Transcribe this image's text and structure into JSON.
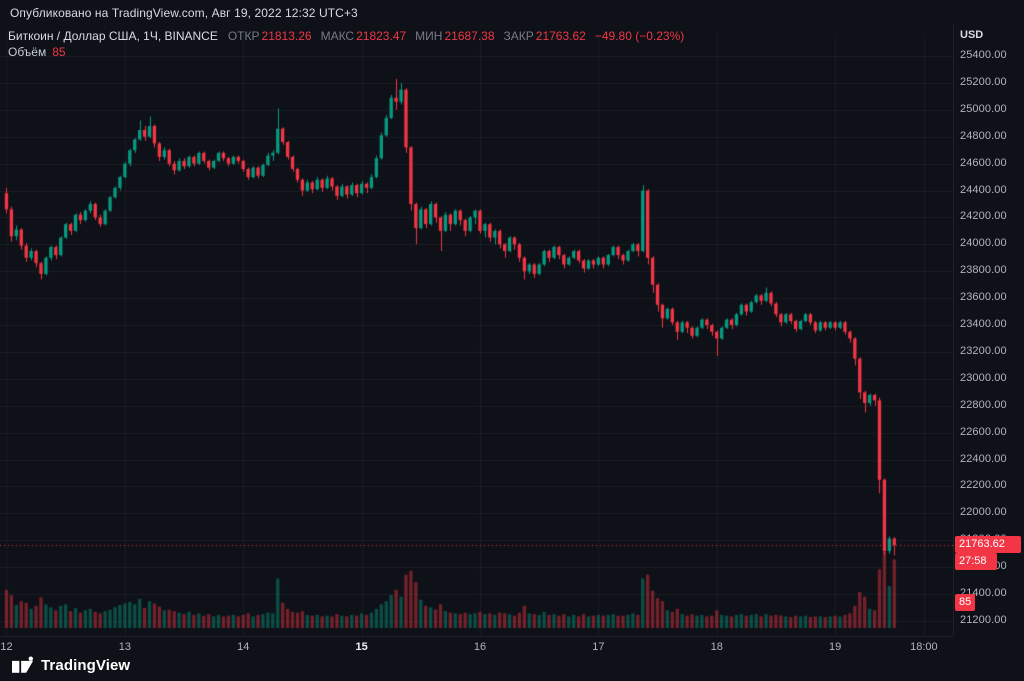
{
  "meta": {
    "published": "Опубликовано на TradingView.com, Авг 19, 2022 12:32 UTC+3"
  },
  "legend": {
    "symbol": "Биткоин / Доллар США, 1Ч, BINANCE",
    "open_label": "ОТКР",
    "open": "21813.26",
    "high_label": "МАКС",
    "high": "21823.47",
    "low_label": "МИН",
    "low": "21687.38",
    "close_label": "ЗАКР",
    "close": "21763.62",
    "change": "−49.80 (−0.23%)",
    "volume_label": "Объём",
    "volume": "85"
  },
  "axis": {
    "currency": "USD"
  },
  "badges": {
    "price": "21763.62",
    "countdown": "27:58",
    "volume": "85"
  },
  "footer": {
    "brand": "TradingView"
  },
  "chart_data": {
    "type": "candlestick",
    "title": "Биткоин / Доллар США",
    "interval": "1Ч",
    "exchange": "BINANCE",
    "up_color": "#089981",
    "down_color": "#f23645",
    "up_vol": "rgba(8,153,129,0.45)",
    "down_vol": "rgba(242,54,69,0.45)",
    "ylim": [
      21200,
      25400
    ],
    "slots": 192,
    "price_ticks": [
      25400,
      25200,
      25000,
      24800,
      24600,
      24400,
      24200,
      24000,
      23800,
      23600,
      23400,
      23200,
      23000,
      22800,
      22600,
      22400,
      22200,
      22000,
      21800,
      21600,
      21400,
      21200
    ],
    "time_ticks": [
      {
        "label": "12",
        "i": 0
      },
      {
        "label": "13",
        "i": 24
      },
      {
        "label": "14",
        "i": 48
      },
      {
        "label": "15",
        "i": 72,
        "major": true
      },
      {
        "label": "16",
        "i": 96
      },
      {
        "label": "17",
        "i": 120
      },
      {
        "label": "18",
        "i": 144
      },
      {
        "label": "19",
        "i": 168
      },
      {
        "label": "18:00",
        "i": 186
      }
    ],
    "last_close": 21763.62,
    "last_volume": 85,
    "candles": [
      [
        24380,
        24420,
        24230,
        24260,
        45
      ],
      [
        24260,
        24280,
        24020,
        24060,
        38
      ],
      [
        24060,
        24140,
        24030,
        24110,
        25
      ],
      [
        24110,
        24120,
        23960,
        23990,
        30
      ],
      [
        23990,
        24010,
        23870,
        23900,
        28
      ],
      [
        23900,
        23970,
        23880,
        23950,
        20
      ],
      [
        23950,
        23960,
        23830,
        23860,
        24
      ],
      [
        23860,
        23870,
        23740,
        23780,
        35
      ],
      [
        23780,
        23910,
        23770,
        23900,
        26
      ],
      [
        23900,
        23990,
        23880,
        23980,
        22
      ],
      [
        23980,
        23990,
        23890,
        23920,
        18
      ],
      [
        23920,
        24060,
        23910,
        24050,
        24
      ],
      [
        24050,
        24160,
        24040,
        24150,
        26
      ],
      [
        24150,
        24160,
        24070,
        24100,
        17
      ],
      [
        24100,
        24230,
        24090,
        24220,
        21
      ],
      [
        24220,
        24240,
        24150,
        24180,
        15
      ],
      [
        24180,
        24260,
        24170,
        24250,
        18
      ],
      [
        24250,
        24320,
        24230,
        24300,
        20
      ],
      [
        24300,
        24310,
        24180,
        24200,
        16
      ],
      [
        24200,
        24220,
        24130,
        24150,
        14
      ],
      [
        24150,
        24260,
        24140,
        24250,
        17
      ],
      [
        24250,
        24360,
        24240,
        24350,
        19
      ],
      [
        24350,
        24430,
        24340,
        24420,
        22
      ],
      [
        24420,
        24510,
        24400,
        24500,
        25
      ],
      [
        24500,
        24610,
        24490,
        24600,
        27
      ],
      [
        24600,
        24710,
        24580,
        24700,
        29
      ],
      [
        24700,
        24790,
        24680,
        24780,
        26
      ],
      [
        24780,
        24920,
        24770,
        24850,
        33
      ],
      [
        24850,
        24880,
        24770,
        24800,
        21
      ],
      [
        24800,
        24950,
        24790,
        24880,
        30
      ],
      [
        24880,
        24890,
        24720,
        24750,
        27
      ],
      [
        24750,
        24760,
        24620,
        24650,
        23
      ],
      [
        24650,
        24720,
        24630,
        24700,
        18
      ],
      [
        24700,
        24710,
        24580,
        24600,
        19
      ],
      [
        24600,
        24620,
        24520,
        24550,
        17
      ],
      [
        24550,
        24640,
        24540,
        24620,
        15
      ],
      [
        24620,
        24640,
        24560,
        24580,
        13
      ],
      [
        24580,
        24660,
        24570,
        24650,
        16
      ],
      [
        24650,
        24660,
        24580,
        24600,
        12
      ],
      [
        24600,
        24690,
        24590,
        24680,
        14
      ],
      [
        24680,
        24690,
        24600,
        24620,
        11
      ],
      [
        24620,
        24630,
        24550,
        24570,
        13
      ],
      [
        24570,
        24630,
        24560,
        24620,
        10
      ],
      [
        24620,
        24690,
        24610,
        24680,
        12
      ],
      [
        24680,
        24690,
        24620,
        24640,
        10
      ],
      [
        24640,
        24650,
        24580,
        24600,
        11
      ],
      [
        24600,
        24660,
        24590,
        24650,
        12
      ],
      [
        24650,
        24660,
        24600,
        24620,
        10
      ],
      [
        24620,
        24630,
        24540,
        24560,
        12
      ],
      [
        24560,
        24570,
        24480,
        24500,
        14
      ],
      [
        24500,
        24580,
        24490,
        24570,
        10
      ],
      [
        24570,
        24580,
        24490,
        24510,
        12
      ],
      [
        24510,
        24600,
        24500,
        24590,
        13
      ],
      [
        24590,
        24680,
        24580,
        24660,
        15
      ],
      [
        24660,
        24700,
        24620,
        24680,
        14
      ],
      [
        24680,
        25010,
        24670,
        24860,
        60
      ],
      [
        24860,
        24870,
        24740,
        24760,
        28
      ],
      [
        24760,
        24770,
        24630,
        24650,
        20
      ],
      [
        24650,
        24660,
        24540,
        24560,
        16
      ],
      [
        24560,
        24570,
        24460,
        24480,
        15
      ],
      [
        24480,
        24490,
        24360,
        24400,
        17
      ],
      [
        24400,
        24480,
        24390,
        24460,
        12
      ],
      [
        24460,
        24470,
        24380,
        24410,
        11
      ],
      [
        24410,
        24500,
        24400,
        24480,
        12
      ],
      [
        24480,
        24490,
        24390,
        24420,
        10
      ],
      [
        24420,
        24510,
        24410,
        24490,
        11
      ],
      [
        24490,
        24500,
        24400,
        24430,
        10
      ],
      [
        24430,
        24440,
        24330,
        24360,
        13
      ],
      [
        24360,
        24450,
        24350,
        24430,
        11
      ],
      [
        24430,
        24440,
        24340,
        24370,
        10
      ],
      [
        24370,
        24460,
        24360,
        24440,
        12
      ],
      [
        24440,
        24450,
        24350,
        24380,
        11
      ],
      [
        24380,
        24470,
        24370,
        24450,
        14
      ],
      [
        24450,
        24460,
        24380,
        24420,
        12
      ],
      [
        24420,
        24520,
        24410,
        24500,
        15
      ],
      [
        24500,
        24660,
        24490,
        24640,
        20
      ],
      [
        24640,
        24830,
        24630,
        24810,
        26
      ],
      [
        24810,
        24960,
        24800,
        24940,
        30
      ],
      [
        24940,
        25110,
        24930,
        25090,
        38
      ],
      [
        25090,
        25230,
        25000,
        25060,
        45
      ],
      [
        25060,
        25200,
        25040,
        25150,
        36
      ],
      [
        25150,
        25160,
        24680,
        24720,
        65
      ],
      [
        24720,
        24730,
        24250,
        24300,
        70
      ],
      [
        24300,
        24310,
        24000,
        24120,
        55
      ],
      [
        24120,
        24280,
        24110,
        24260,
        32
      ],
      [
        24260,
        24270,
        24120,
        24150,
        24
      ],
      [
        24150,
        24320,
        24140,
        24300,
        22
      ],
      [
        24300,
        24310,
        24160,
        24200,
        19
      ],
      [
        24200,
        24210,
        23950,
        24100,
        26
      ],
      [
        24100,
        24240,
        24090,
        24220,
        17
      ],
      [
        24220,
        24230,
        24100,
        24150,
        15
      ],
      [
        24150,
        24260,
        24140,
        24250,
        14
      ],
      [
        24250,
        24260,
        24140,
        24180,
        13
      ],
      [
        24180,
        24190,
        24060,
        24100,
        15
      ],
      [
        24100,
        24210,
        24090,
        24200,
        13
      ],
      [
        24200,
        24260,
        24150,
        24250,
        14
      ],
      [
        24250,
        24260,
        24080,
        24100,
        16
      ],
      [
        24100,
        24160,
        24050,
        24150,
        13
      ],
      [
        24150,
        24160,
        24020,
        24050,
        14
      ],
      [
        24050,
        24110,
        24000,
        24100,
        12
      ],
      [
        24100,
        24110,
        23970,
        24000,
        15
      ],
      [
        24000,
        24010,
        23900,
        23950,
        14
      ],
      [
        23950,
        24060,
        23940,
        24050,
        13
      ],
      [
        24050,
        24060,
        23960,
        24000,
        11
      ],
      [
        24000,
        24010,
        23870,
        23900,
        15
      ],
      [
        23900,
        23910,
        23740,
        23800,
        24
      ],
      [
        23800,
        23860,
        23780,
        23850,
        14
      ],
      [
        23850,
        23860,
        23750,
        23780,
        13
      ],
      [
        23780,
        23860,
        23770,
        23850,
        12
      ],
      [
        23850,
        23960,
        23840,
        23950,
        16
      ],
      [
        23950,
        23960,
        23870,
        23900,
        12
      ],
      [
        23900,
        23990,
        23890,
        23980,
        13
      ],
      [
        23980,
        23990,
        23890,
        23920,
        11
      ],
      [
        23920,
        23930,
        23820,
        23850,
        13
      ],
      [
        23850,
        23910,
        23840,
        23900,
        10
      ],
      [
        23900,
        23960,
        23890,
        23950,
        12
      ],
      [
        23950,
        23960,
        23860,
        23880,
        10
      ],
      [
        23880,
        23890,
        23790,
        23820,
        13
      ],
      [
        23820,
        23890,
        23810,
        23880,
        10
      ],
      [
        23880,
        23890,
        23820,
        23850,
        11
      ],
      [
        23850,
        23910,
        23840,
        23900,
        12
      ],
      [
        23900,
        23910,
        23820,
        23850,
        11
      ],
      [
        23850,
        23930,
        23840,
        23920,
        12
      ],
      [
        23920,
        23990,
        23910,
        23980,
        13
      ],
      [
        23980,
        23990,
        23890,
        23920,
        11
      ],
      [
        23920,
        23930,
        23850,
        23880,
        11
      ],
      [
        23880,
        23960,
        23870,
        23950,
        12
      ],
      [
        23950,
        24010,
        23940,
        24000,
        14
      ],
      [
        24000,
        24010,
        23910,
        23950,
        12
      ],
      [
        23950,
        24440,
        23940,
        24400,
        60
      ],
      [
        24400,
        24410,
        23850,
        23900,
        65
      ],
      [
        23900,
        23910,
        23640,
        23700,
        44
      ],
      [
        23700,
        23710,
        23500,
        23550,
        34
      ],
      [
        23550,
        23560,
        23380,
        23450,
        30
      ],
      [
        23450,
        23530,
        23440,
        23520,
        18
      ],
      [
        23520,
        23530,
        23400,
        23420,
        16
      ],
      [
        23420,
        23430,
        23290,
        23350,
        20
      ],
      [
        23350,
        23430,
        23340,
        23420,
        13
      ],
      [
        23420,
        23430,
        23340,
        23380,
        11
      ],
      [
        23380,
        23390,
        23300,
        23320,
        13
      ],
      [
        23320,
        23390,
        23310,
        23380,
        11
      ],
      [
        23380,
        23450,
        23370,
        23440,
        12
      ],
      [
        23440,
        23450,
        23370,
        23400,
        10
      ],
      [
        23400,
        23410,
        23320,
        23350,
        11
      ],
      [
        23350,
        23360,
        23170,
        23300,
        18
      ],
      [
        23300,
        23390,
        23290,
        23380,
        12
      ],
      [
        23380,
        23450,
        23370,
        23440,
        11
      ],
      [
        23440,
        23450,
        23370,
        23400,
        10
      ],
      [
        23400,
        23490,
        23390,
        23480,
        12
      ],
      [
        23480,
        23560,
        23470,
        23550,
        13
      ],
      [
        23550,
        23560,
        23470,
        23500,
        11
      ],
      [
        23500,
        23580,
        23490,
        23570,
        12
      ],
      [
        23570,
        23630,
        23560,
        23620,
        13
      ],
      [
        23620,
        23630,
        23550,
        23580,
        10
      ],
      [
        23580,
        23680,
        23570,
        23640,
        13
      ],
      [
        23640,
        23650,
        23540,
        23560,
        11
      ],
      [
        23560,
        23570,
        23460,
        23480,
        12
      ],
      [
        23480,
        23490,
        23390,
        23420,
        11
      ],
      [
        23420,
        23490,
        23410,
        23480,
        10
      ],
      [
        23480,
        23490,
        23410,
        23430,
        9
      ],
      [
        23430,
        23440,
        23350,
        23370,
        11
      ],
      [
        23370,
        23440,
        23360,
        23430,
        10
      ],
      [
        23430,
        23490,
        23420,
        23480,
        11
      ],
      [
        23480,
        23490,
        23400,
        23420,
        9
      ],
      [
        23420,
        23430,
        23340,
        23360,
        10
      ],
      [
        23360,
        23430,
        23350,
        23420,
        10
      ],
      [
        23420,
        23430,
        23360,
        23380,
        9
      ],
      [
        23380,
        23430,
        23370,
        23420,
        10
      ],
      [
        23420,
        23430,
        23360,
        23380,
        11
      ],
      [
        23380,
        23430,
        23370,
        23420,
        10
      ],
      [
        23420,
        23430,
        23330,
        23350,
        12
      ],
      [
        23350,
        23360,
        23270,
        23300,
        14
      ],
      [
        23300,
        23310,
        23100,
        23150,
        24
      ],
      [
        23150,
        23160,
        22850,
        22900,
        42
      ],
      [
        22900,
        22910,
        22750,
        22820,
        36
      ],
      [
        22820,
        22890,
        22800,
        22880,
        20
      ],
      [
        22880,
        22890,
        22800,
        22840,
        18
      ],
      [
        22840,
        22860,
        22150,
        22250,
        72
      ],
      [
        22250,
        22260,
        21690,
        21720,
        95
      ],
      [
        21720,
        21830,
        21700,
        21813,
        50
      ],
      [
        21813.26,
        21823.47,
        21687.38,
        21763.62,
        85
      ]
    ]
  }
}
